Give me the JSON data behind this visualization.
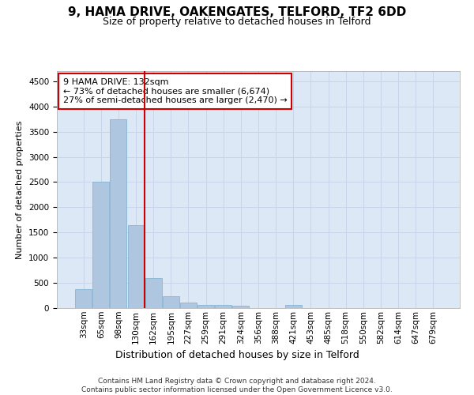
{
  "title1": "9, HAMA DRIVE, OAKENGATES, TELFORD, TF2 6DD",
  "title2": "Size of property relative to detached houses in Telford",
  "xlabel": "Distribution of detached houses by size in Telford",
  "ylabel": "Number of detached properties",
  "categories": [
    "33sqm",
    "65sqm",
    "98sqm",
    "130sqm",
    "162sqm",
    "195sqm",
    "227sqm",
    "259sqm",
    "291sqm",
    "324sqm",
    "356sqm",
    "388sqm",
    "421sqm",
    "453sqm",
    "485sqm",
    "518sqm",
    "550sqm",
    "582sqm",
    "614sqm",
    "647sqm",
    "679sqm"
  ],
  "values": [
    375,
    2500,
    3750,
    1650,
    600,
    240,
    110,
    65,
    55,
    50,
    0,
    0,
    65,
    0,
    0,
    0,
    0,
    0,
    0,
    0,
    0
  ],
  "bar_color": "#aec6e0",
  "bar_edge_color": "#7aafd0",
  "marker_line_color": "#cc0000",
  "annotation_text": "9 HAMA DRIVE: 132sqm\n← 73% of detached houses are smaller (6,674)\n27% of semi-detached houses are larger (2,470) →",
  "annotation_box_color": "white",
  "annotation_box_edge": "#cc0000",
  "ylim": [
    0,
    4700
  ],
  "yticks": [
    0,
    500,
    1000,
    1500,
    2000,
    2500,
    3000,
    3500,
    4000,
    4500
  ],
  "grid_color": "#c8d4e8",
  "background_color": "#dce8f5",
  "footer": "Contains HM Land Registry data © Crown copyright and database right 2024.\nContains public sector information licensed under the Open Government Licence v3.0.",
  "title1_fontsize": 11,
  "title2_fontsize": 9,
  "xlabel_fontsize": 9,
  "ylabel_fontsize": 8,
  "tick_fontsize": 7.5,
  "annotation_fontsize": 8,
  "footer_fontsize": 6.5
}
